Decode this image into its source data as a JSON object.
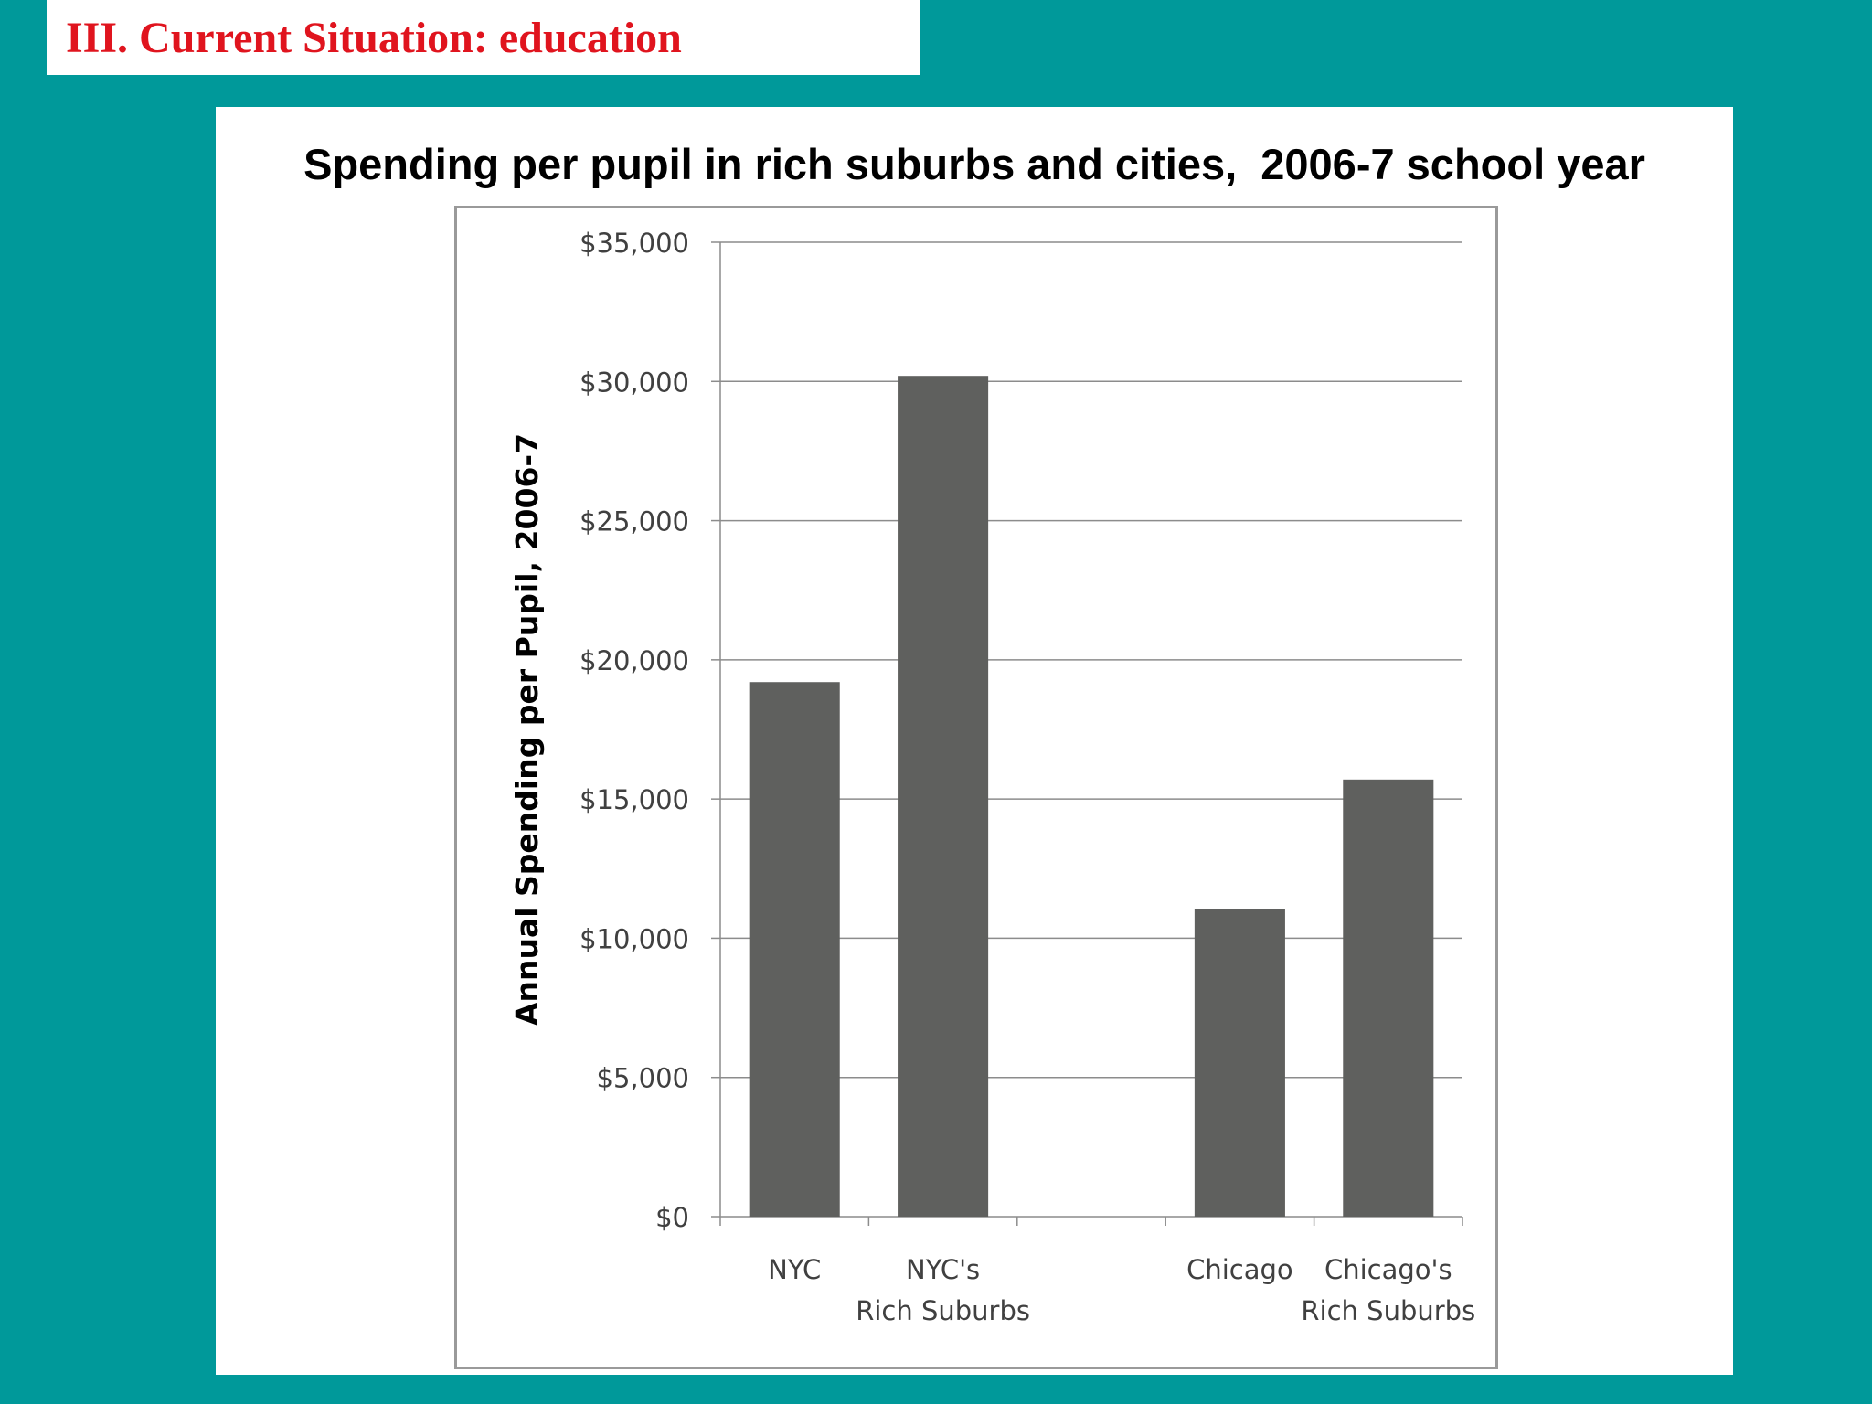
{
  "slide": {
    "heading": "III. Current Situation: education",
    "colors": {
      "background": "#00999A",
      "heading": "#E0141E",
      "bar": "#5F605E"
    }
  },
  "chart_data": {
    "type": "bar",
    "title": "Spending per pupil in rich suburbs and cities,  2006-7 school year",
    "ylabel": "Annual Spending per Pupil, 2006-7",
    "xlabel": "",
    "ylim": [
      0,
      35000
    ],
    "yticks": [
      0,
      5000,
      10000,
      15000,
      20000,
      25000,
      30000,
      35000
    ],
    "ytick_labels": [
      "$0",
      "$5,000",
      "$10,000",
      "$15,000",
      "$20,000",
      "$25,000",
      "$30,000",
      "$35,000"
    ],
    "categories": [
      [
        "NYC"
      ],
      [
        "NYC's",
        "Rich Suburbs"
      ],
      [],
      [
        "Chicago"
      ],
      [
        "Chicago's",
        "Rich Suburbs"
      ]
    ],
    "values": [
      19200,
      30200,
      null,
      11050,
      15700
    ],
    "grid": true,
    "legend": "none"
  }
}
